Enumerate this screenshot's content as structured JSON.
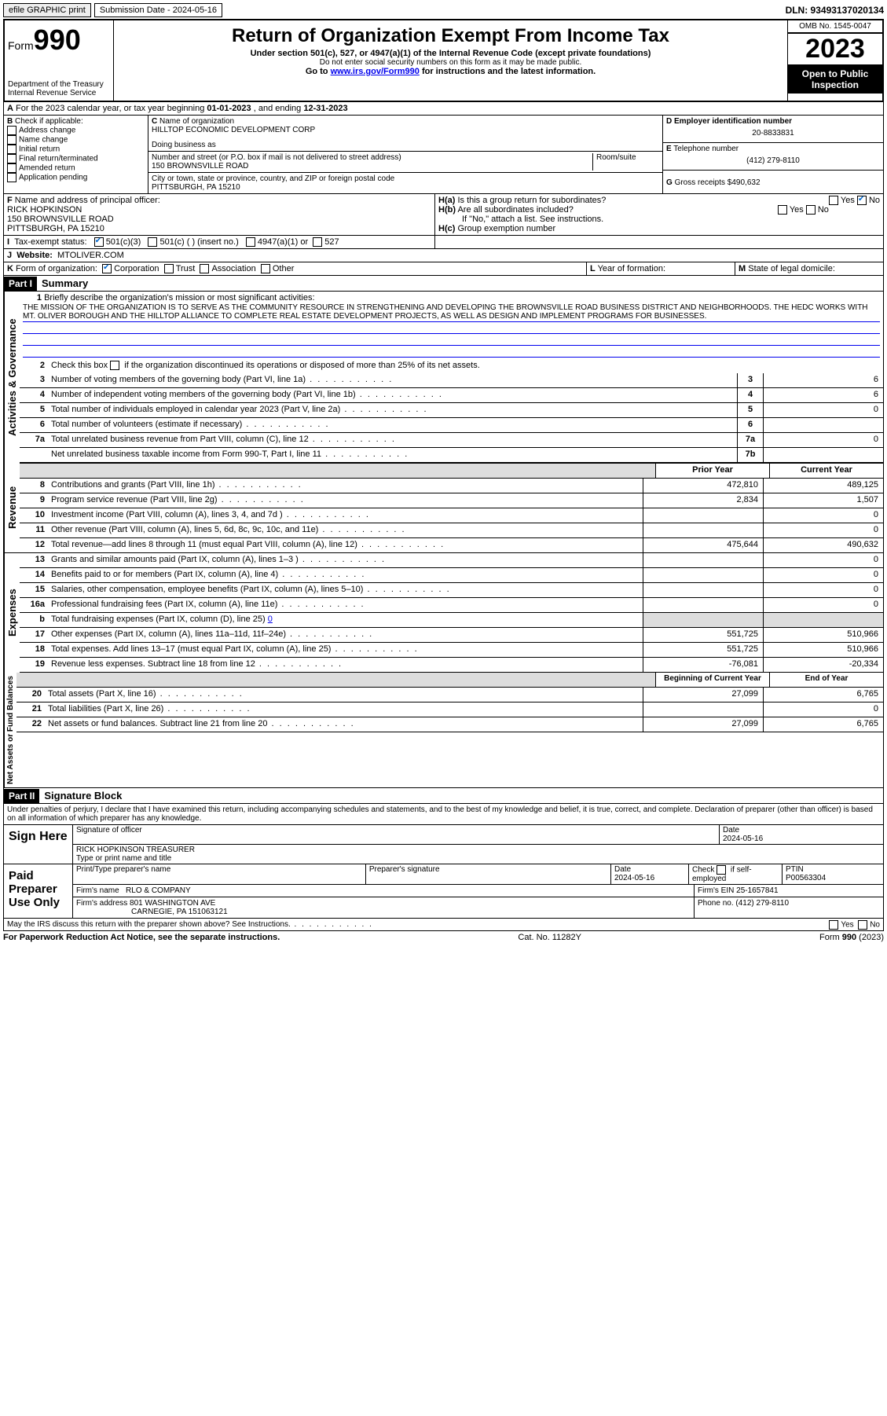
{
  "top": {
    "efile": "efile GRAPHIC print",
    "sub_lbl": "Submission Date - 2024-05-16",
    "dln": "DLN: 93493137020134"
  },
  "hdr": {
    "form": "Form",
    "num": "990",
    "dept": "Department of the Treasury",
    "irs": "Internal Revenue Service",
    "title": "Return of Organization Exempt From Income Tax",
    "s1": "Under section 501(c), 527, or 4947(a)(1) of the Internal Revenue Code (except private foundations)",
    "s2": "Do not enter social security numbers on this form as it may be made public.",
    "s3": "Go to ",
    "link": "www.irs.gov/Form990",
    "s4": " for instructions and the latest information.",
    "omb": "OMB No. 1545-0047",
    "year": "2023",
    "open": "Open to Public Inspection"
  },
  "a": {
    "txt": "For the 2023 calendar year, or tax year beginning ",
    "b": "01-01-2023",
    "m": " , and ending ",
    "e": "12-31-2023",
    "pre": "A"
  },
  "b": {
    "lbl": "B",
    "t": "Check if applicable:",
    "o1": "Address change",
    "o2": "Name change",
    "o3": "Initial return",
    "o4": "Final return/terminated",
    "o5": "Amended return",
    "o6": "Application pending"
  },
  "c": {
    "lbl": "C",
    "n": "Name of organization",
    "org": "HILLTOP ECONOMIC DEVELOPMENT CORP",
    "dba": "Doing business as",
    "addr_l": "Number and street (or P.O. box if mail is not delivered to street address)",
    "room": "Room/suite",
    "addr": "150 BROWNSVILLE ROAD",
    "city_l": "City or town, state or province, country, and ZIP or foreign postal code",
    "city": "PITTSBURGH, PA  15210"
  },
  "d": {
    "lbl": "D",
    "t": "Employer identification number",
    "v": "20-8833831"
  },
  "e": {
    "lbl": "E",
    "t": "Telephone number",
    "v": "(412) 279-8110"
  },
  "g": {
    "lbl": "G",
    "t": "Gross receipts $",
    "v": "490,632"
  },
  "f": {
    "lbl": "F",
    "t": "Name and address of principal officer:",
    "n": "RICK HOPKINSON",
    "a1": "150 BROWNSVILLE ROAD",
    "a2": "PITTSBURGH, PA  15210"
  },
  "h": {
    "a": "Is this a group return for subordinates?",
    "al": "H(a)",
    "b": "Are all subordinates included?",
    "bl": "H(b)",
    "bn": "If \"No,\" attach a list. See instructions.",
    "c": "Group exemption number",
    "cl": "H(c)",
    "y": "Yes",
    "n": "No"
  },
  "i": {
    "lbl": "I",
    "t": "Tax-exempt status:",
    "o1": "501(c)(3)",
    "o2": "501(c) (  ) (insert no.)",
    "o3": "4947(a)(1) or",
    "o4": "527"
  },
  "j": {
    "lbl": "J",
    "t": "Website:",
    "v": "MTOLIVER.COM"
  },
  "k": {
    "lbl": "K",
    "t": "Form of organization:",
    "o1": "Corporation",
    "o2": "Trust",
    "o3": "Association",
    "o4": "Other"
  },
  "l": {
    "lbl": "L",
    "t": "Year of formation:"
  },
  "m": {
    "lbl": "M",
    "t": "State of legal domicile:"
  },
  "p1": {
    "hdr": "Part I",
    "t": "Summary",
    "side": "Activities & Governance",
    "l1": "Briefly describe the organization's mission or most significant activities:",
    "mission": "THE MISSION OF THE ORGANIZATION IS TO SERVE AS THE COMMUNITY RESOURCE IN STRENGTHENING AND DEVELOPING THE BROWNSVILLE ROAD BUSINESS DISTRICT AND NEIGHBORHOODS. THE HEDC WORKS WITH MT. OLIVER BOROUGH AND THE HILLTOP ALLIANCE TO COMPLETE REAL ESTATE DEVELOPMENT PROJECTS, AS WELL AS DESIGN AND IMPLEMENT PROGRAMS FOR BUSINESSES.",
    "l2": "Check this box ",
    "l2b": " if the organization discontinued its operations or disposed of more than 25% of its net assets.",
    "rows": [
      {
        "n": "3",
        "t": "Number of voting members of the governing body (Part VI, line 1a)",
        "b": "3",
        "v": "6"
      },
      {
        "n": "4",
        "t": "Number of independent voting members of the governing body (Part VI, line 1b)",
        "b": "4",
        "v": "6"
      },
      {
        "n": "5",
        "t": "Total number of individuals employed in calendar year 2023 (Part V, line 2a)",
        "b": "5",
        "v": "0"
      },
      {
        "n": "6",
        "t": "Total number of volunteers (estimate if necessary)",
        "b": "6",
        "v": ""
      },
      {
        "n": "7a",
        "t": "Total unrelated business revenue from Part VIII, column (C), line 12",
        "b": "7a",
        "v": "0"
      },
      {
        "n": "",
        "t": "Net unrelated business taxable income from Form 990-T, Part I, line 11",
        "b": "7b",
        "v": ""
      }
    ]
  },
  "rev": {
    "side": "Revenue",
    "h1": "Prior Year",
    "h2": "Current Year",
    "rows": [
      {
        "n": "8",
        "t": "Contributions and grants (Part VIII, line 1h)",
        "p": "472,810",
        "c": "489,125"
      },
      {
        "n": "9",
        "t": "Program service revenue (Part VIII, line 2g)",
        "p": "2,834",
        "c": "1,507"
      },
      {
        "n": "10",
        "t": "Investment income (Part VIII, column (A), lines 3, 4, and 7d )",
        "p": "",
        "c": "0"
      },
      {
        "n": "11",
        "t": "Other revenue (Part VIII, column (A), lines 5, 6d, 8c, 9c, 10c, and 11e)",
        "p": "",
        "c": "0"
      },
      {
        "n": "12",
        "t": "Total revenue—add lines 8 through 11 (must equal Part VIII, column (A), line 12)",
        "p": "475,644",
        "c": "490,632"
      }
    ]
  },
  "exp": {
    "side": "Expenses",
    "rows": [
      {
        "n": "13",
        "t": "Grants and similar amounts paid (Part IX, column (A), lines 1–3 )",
        "p": "",
        "c": "0"
      },
      {
        "n": "14",
        "t": "Benefits paid to or for members (Part IX, column (A), line 4)",
        "p": "",
        "c": "0"
      },
      {
        "n": "15",
        "t": "Salaries, other compensation, employee benefits (Part IX, column (A), lines 5–10)",
        "p": "",
        "c": "0"
      },
      {
        "n": "16a",
        "t": "Professional fundraising fees (Part IX, column (A), line 11e)",
        "p": "",
        "c": "0"
      },
      {
        "n": "b",
        "t": "Total fundraising expenses (Part IX, column (D), line 25) ",
        "tv": "0",
        "grey": true
      },
      {
        "n": "17",
        "t": "Other expenses (Part IX, column (A), lines 11a–11d, 11f–24e)",
        "p": "551,725",
        "c": "510,966"
      },
      {
        "n": "18",
        "t": "Total expenses. Add lines 13–17 (must equal Part IX, column (A), line 25)",
        "p": "551,725",
        "c": "510,966"
      },
      {
        "n": "19",
        "t": "Revenue less expenses. Subtract line 18 from line 12",
        "p": "-76,081",
        "c": "-20,334"
      }
    ]
  },
  "net": {
    "side": "Net Assets or Fund Balances",
    "h1": "Beginning of Current Year",
    "h2": "End of Year",
    "rows": [
      {
        "n": "20",
        "t": "Total assets (Part X, line 16)",
        "p": "27,099",
        "c": "6,765"
      },
      {
        "n": "21",
        "t": "Total liabilities (Part X, line 26)",
        "p": "",
        "c": "0"
      },
      {
        "n": "22",
        "t": "Net assets or fund balances. Subtract line 21 from line 20",
        "p": "27,099",
        "c": "6,765"
      }
    ]
  },
  "p2": {
    "hdr": "Part II",
    "t": "Signature Block",
    "decl": "Under penalties of perjury, I declare that I have examined this return, including accompanying schedules and statements, and to the best of my knowledge and belief, it is true, correct, and complete. Declaration of preparer (other than officer) is based on all information of which preparer has any knowledge."
  },
  "sign": {
    "l": "Sign Here",
    "so": "Signature of officer",
    "d": "Date",
    "dv": "2024-05-16",
    "name": "RICK HOPKINSON TREASURER",
    "tl": "Type or print name and title"
  },
  "prep": {
    "l": "Paid Preparer Use Only",
    "c1": "Print/Type preparer's name",
    "c2": "Preparer's signature",
    "c3": "Date",
    "c3v": "2024-05-16",
    "c4": "Check",
    "c4b": "if self-employed",
    "c5": "PTIN",
    "c5v": "P00563304",
    "fn": "Firm's name",
    "fnv": "RLO & COMPANY",
    "fe": "Firm's EIN",
    "fev": "25-1657841",
    "fa": "Firm's address",
    "fav": "801 WASHINGTON AVE",
    "fac": "CARNEGIE, PA  151063121",
    "ph": "Phone no.",
    "phv": "(412) 279-8110"
  },
  "disc": {
    "t": "May the IRS discuss this return with the preparer shown above? See Instructions.",
    "y": "Yes",
    "n": "No"
  },
  "foot": {
    "l": "For Paperwork Reduction Act Notice, see the separate instructions.",
    "m": "Cat. No. 11282Y",
    "r": "Form ",
    "rb": "990",
    "ry": " (2023)"
  }
}
